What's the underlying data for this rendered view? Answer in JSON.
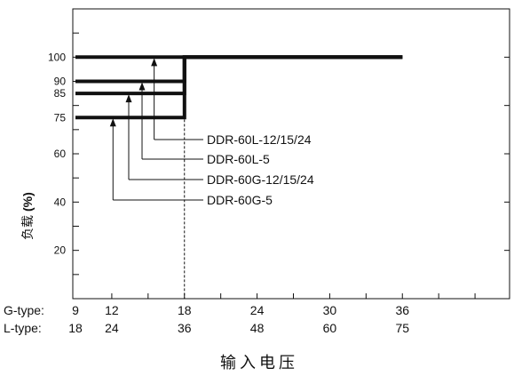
{
  "chart_data": {
    "type": "line",
    "title": "",
    "xlabel": "输入电压",
    "ylabel": {
      "main": "负载",
      "unit": "(%)"
    },
    "ylim": [
      0,
      120
    ],
    "y_ticks": [
      20,
      40,
      60,
      75,
      85,
      90,
      100
    ],
    "x_axis_rows": [
      {
        "label": "G-type:",
        "ticks": [
          "9",
          "12",
          "18",
          "24",
          "30",
          "36"
        ]
      },
      {
        "label": "L-type:",
        "ticks": [
          "18",
          "24",
          "36",
          "48",
          "60",
          "75"
        ]
      }
    ],
    "g_type_range": [
      9,
      45
    ],
    "x_ticks_g": [
      9,
      12,
      18,
      24,
      30,
      36
    ],
    "series": [
      {
        "name": "DDR-60L-12/15/24",
        "x": [
          9,
          18,
          18,
          36
        ],
        "y": [
          100,
          100,
          100,
          100
        ],
        "arrow_at_x": 15.5
      },
      {
        "name": "DDR-60L-5",
        "x": [
          9,
          18,
          18,
          36
        ],
        "y": [
          90,
          90,
          100,
          100
        ],
        "arrow_at_x": 14.5
      },
      {
        "name": "DDR-60G-12/15/24",
        "x": [
          9,
          18,
          18,
          36
        ],
        "y": [
          85,
          85,
          100,
          100
        ],
        "arrow_at_x": 13.4
      },
      {
        "name": "DDR-60G-5",
        "x": [
          9,
          18,
          18,
          36
        ],
        "y": [
          75,
          75,
          100,
          100
        ],
        "arrow_at_x": 12.1
      }
    ],
    "reference_line_x": 18,
    "grid": false,
    "legend": "callouts"
  }
}
